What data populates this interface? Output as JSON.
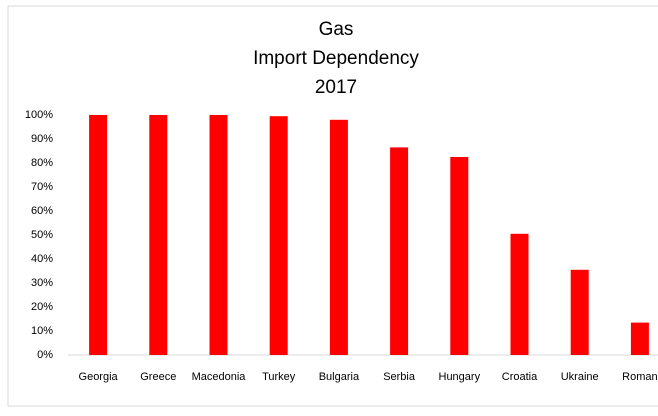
{
  "chart_data": {
    "type": "bar",
    "title": [
      "Gas",
      "Import Dependency",
      "2017"
    ],
    "categories": [
      "Georgia",
      "Greece",
      "Macedonia",
      "Turkey",
      "Bulgaria",
      "Serbia",
      "Hungary",
      "Croatia",
      "Ukraine",
      "Roman"
    ],
    "values": [
      100,
      100,
      100,
      99.5,
      98,
      86.5,
      82.5,
      50.5,
      35.5,
      13.5
    ],
    "color": "#ff0000",
    "ylim": [
      0,
      100
    ],
    "yticks": [
      {
        "value": 0,
        "label": "0%"
      },
      {
        "value": 10,
        "label": "10%"
      },
      {
        "value": 20,
        "label": "20%"
      },
      {
        "value": 30,
        "label": "30%"
      },
      {
        "value": 40,
        "label": "40%"
      },
      {
        "value": 50,
        "label": "50%"
      },
      {
        "value": 60,
        "label": "60%"
      },
      {
        "value": 70,
        "label": "70%"
      },
      {
        "value": 80,
        "label": "80%"
      },
      {
        "value": 90,
        "label": "90%"
      },
      {
        "value": 100,
        "label": "100%"
      }
    ],
    "grid": false
  }
}
